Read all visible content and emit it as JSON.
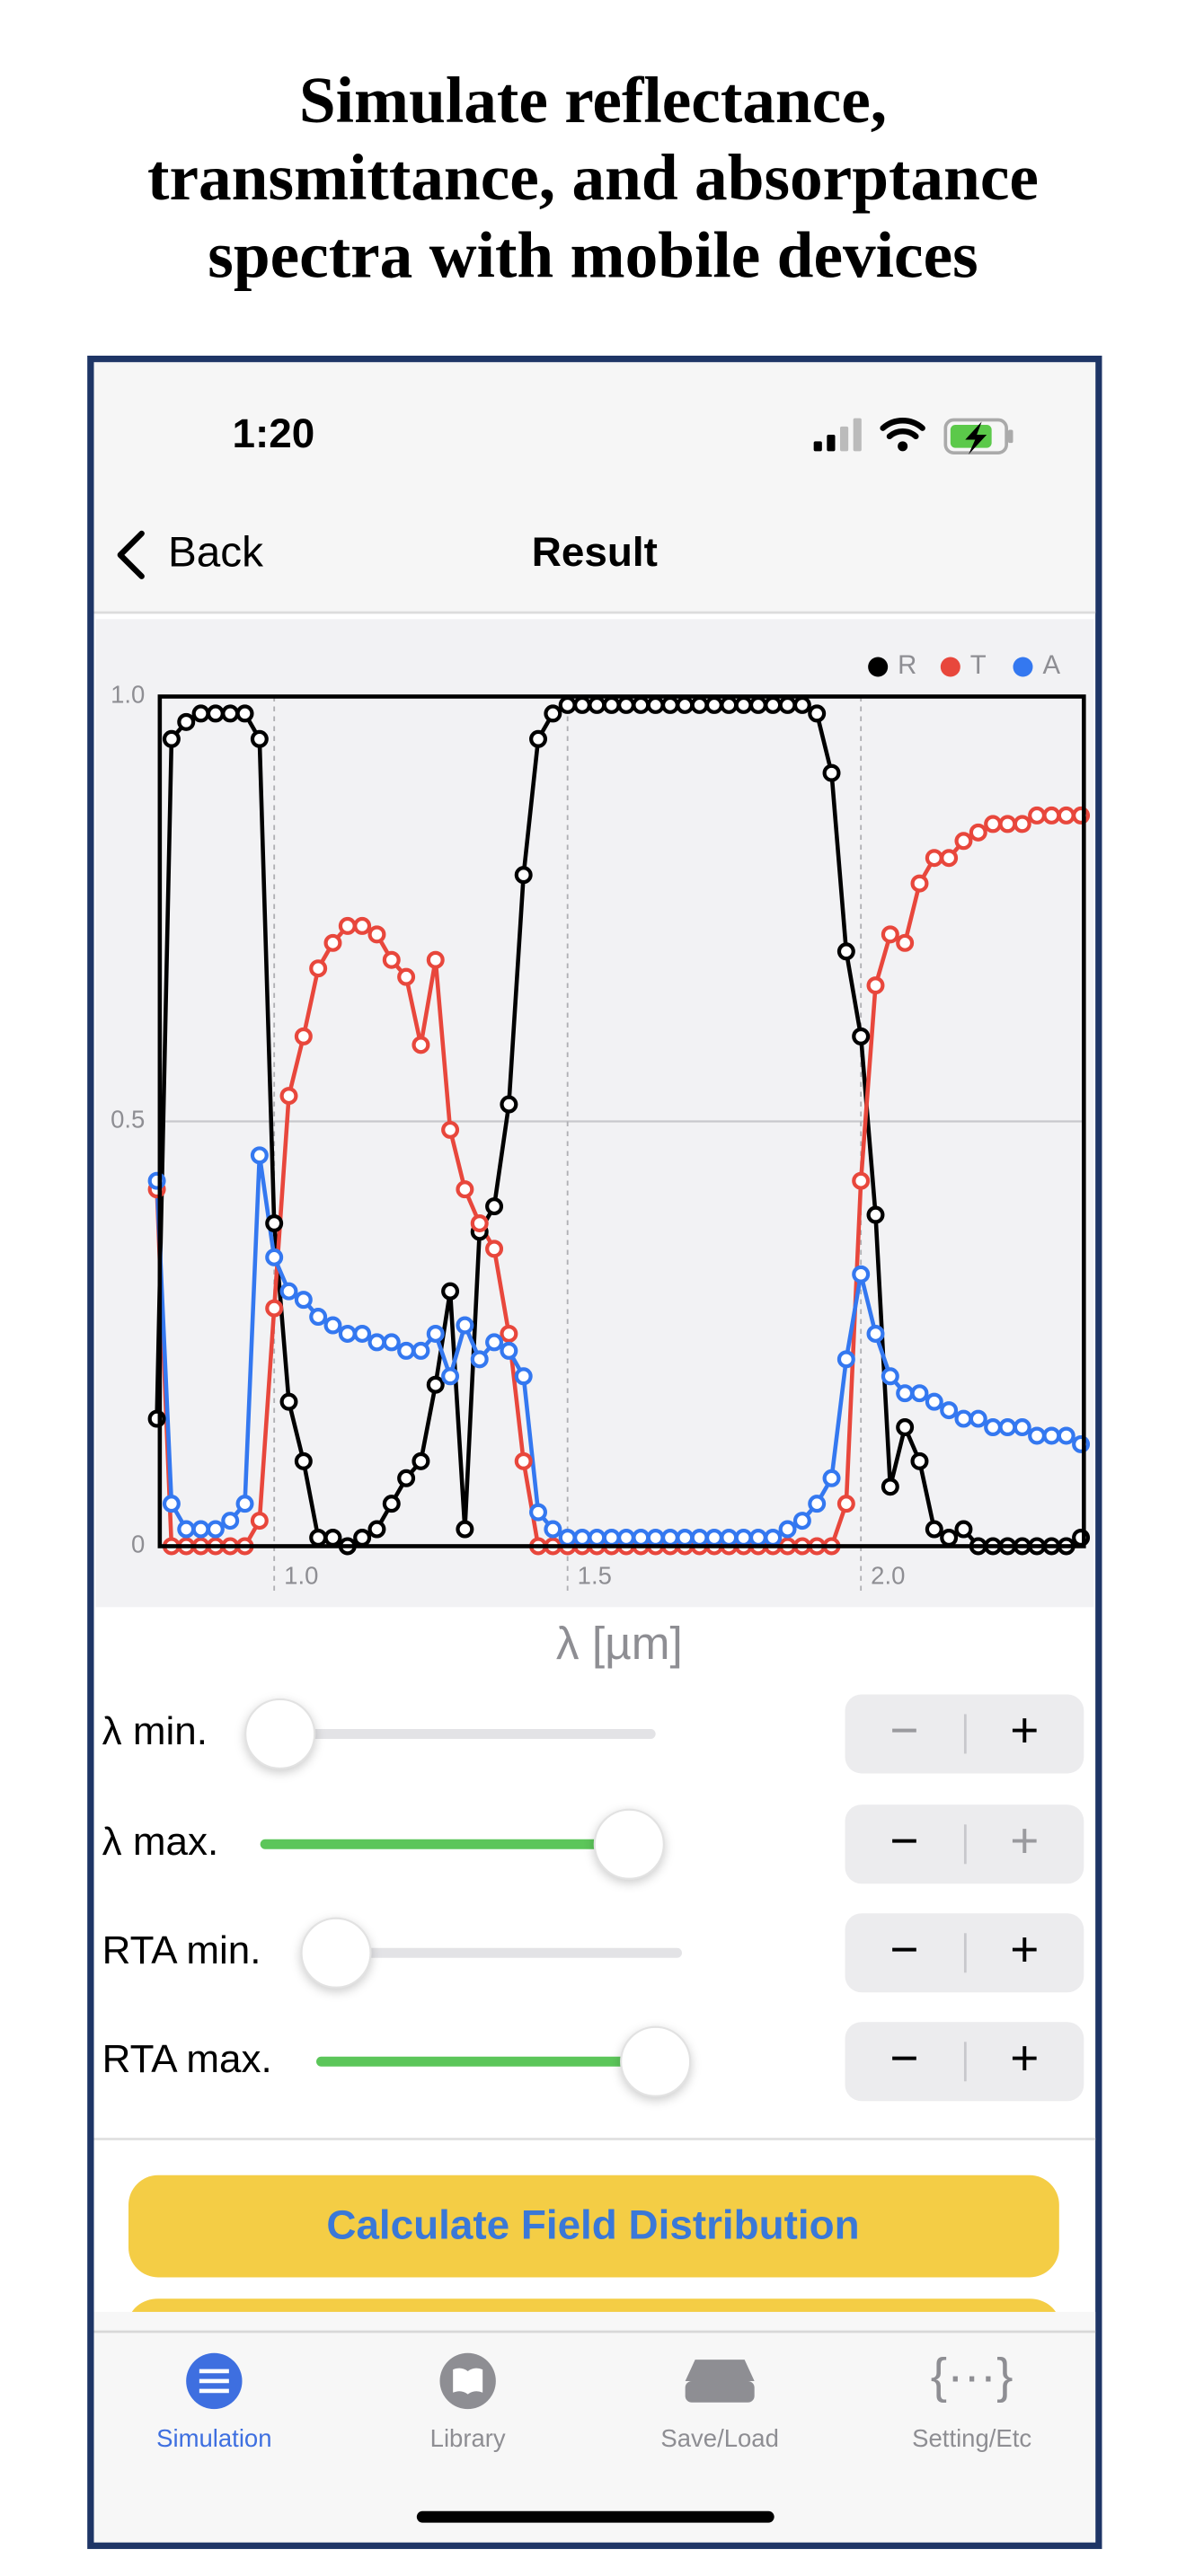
{
  "header": {
    "title_lines": [
      "Simulate reflectance,",
      "transmittance, and absorptance",
      "spectra with mobile devices"
    ]
  },
  "status_bar": {
    "time": "1:20"
  },
  "nav_bar": {
    "back": "Back",
    "title": "Result"
  },
  "chart_data": {
    "type": "line",
    "xlabel": "λ [µm]",
    "legend": "top-right",
    "grid": true,
    "markers": true,
    "xlim": [
      0.805,
      2.38
    ],
    "ylim": [
      0,
      1
    ],
    "xticks": [
      {
        "value": 1,
        "label": "1.0"
      },
      1.5,
      {
        "value": 2,
        "label": "2.0"
      }
    ],
    "yticks": [
      0,
      0.5,
      {
        "value": 1,
        "label": "1.0"
      }
    ],
    "x": [
      0.8,
      0.825,
      0.85,
      0.875,
      0.9,
      0.925,
      0.95,
      0.975,
      1.0,
      1.025,
      1.05,
      1.075,
      1.1,
      1.125,
      1.15,
      1.175,
      1.2,
      1.225,
      1.25,
      1.275,
      1.3,
      1.325,
      1.35,
      1.375,
      1.4,
      1.425,
      1.45,
      1.475,
      1.5,
      1.525,
      1.55,
      1.575,
      1.6,
      1.625,
      1.65,
      1.675,
      1.7,
      1.725,
      1.75,
      1.775,
      1.8,
      1.825,
      1.85,
      1.875,
      1.9,
      1.925,
      1.95,
      1.975,
      2.0,
      2.025,
      2.05,
      2.075,
      2.1,
      2.125,
      2.15,
      2.175,
      2.2,
      2.225,
      2.25,
      2.275,
      2.3,
      2.325,
      2.35,
      2.375
    ],
    "series": [
      {
        "name": "R",
        "color": "#000000",
        "values": [
          0.15,
          0.95,
          0.97,
          0.98,
          0.98,
          0.98,
          0.98,
          0.95,
          0.38,
          0.17,
          0.1,
          0.01,
          0.01,
          0.0,
          0.01,
          0.02,
          0.05,
          0.08,
          0.1,
          0.19,
          0.3,
          0.02,
          0.37,
          0.4,
          0.52,
          0.79,
          0.95,
          0.98,
          0.99,
          0.99,
          0.99,
          0.99,
          0.99,
          0.99,
          0.99,
          0.99,
          0.99,
          0.99,
          0.99,
          0.99,
          0.99,
          0.99,
          0.99,
          0.99,
          0.99,
          0.98,
          0.91,
          0.7,
          0.6,
          0.39,
          0.07,
          0.14,
          0.1,
          0.02,
          0.01,
          0.02,
          0,
          0,
          0,
          0,
          0,
          0,
          0,
          0.01
        ]
      },
      {
        "name": "T",
        "color": "#e8473c",
        "values": [
          0.42,
          0,
          0,
          0,
          0,
          0,
          0,
          0.03,
          0.28,
          0.53,
          0.6,
          0.68,
          0.71,
          0.73,
          0.73,
          0.72,
          0.69,
          0.67,
          0.59,
          0.69,
          0.49,
          0.42,
          0.38,
          0.35,
          0.25,
          0.1,
          0,
          0,
          0,
          0,
          0,
          0,
          0,
          0,
          0,
          0,
          0,
          0,
          0,
          0,
          0,
          0,
          0,
          0,
          0,
          0,
          0,
          0.05,
          0.43,
          0.66,
          0.72,
          0.71,
          0.78,
          0.81,
          0.81,
          0.83,
          0.84,
          0.85,
          0.85,
          0.85,
          0.86,
          0.86,
          0.86,
          0.86
        ]
      },
      {
        "name": "A",
        "color": "#3478f0",
        "values": [
          0.43,
          0.05,
          0.02,
          0.02,
          0.02,
          0.03,
          0.05,
          0.46,
          0.34,
          0.3,
          0.29,
          0.27,
          0.26,
          0.25,
          0.25,
          0.24,
          0.24,
          0.23,
          0.23,
          0.25,
          0.2,
          0.26,
          0.22,
          0.24,
          0.23,
          0.2,
          0.04,
          0.02,
          0.01,
          0.01,
          0.01,
          0.01,
          0.01,
          0.01,
          0.01,
          0.01,
          0.01,
          0.01,
          0.01,
          0.01,
          0.01,
          0.01,
          0.01,
          0.02,
          0.03,
          0.05,
          0.08,
          0.22,
          0.32,
          0.25,
          0.2,
          0.18,
          0.18,
          0.17,
          0.16,
          0.15,
          0.15,
          0.14,
          0.14,
          0.14,
          0.13,
          0.13,
          0.13,
          0.12
        ]
      }
    ]
  },
  "controls": {
    "sliders": [
      {
        "label": "λ min."
      },
      {
        "label": "λ max."
      },
      {
        "label": "RTA min."
      },
      {
        "label": "RTA max."
      }
    ],
    "minus": "−",
    "plus": "+"
  },
  "button": "Calculate Field Distribution",
  "tabs": [
    {
      "label": "Simulation"
    },
    {
      "label": "Library"
    },
    {
      "label": "Save/Load"
    },
    {
      "label": "Setting/Etc",
      "icon": "{···}"
    }
  ]
}
